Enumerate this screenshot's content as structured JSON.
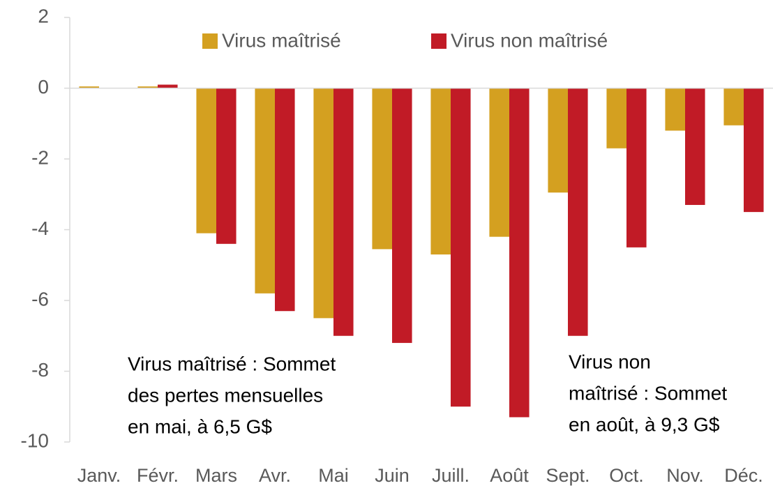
{
  "chart_data": {
    "type": "bar",
    "categories": [
      "Janv.",
      "Févr.",
      "Mars",
      "Avr.",
      "Mai",
      "Juin",
      "Juill.",
      "Août",
      "Sept.",
      "Oct.",
      "Nov.",
      "Déc."
    ],
    "series": [
      {
        "name": "Virus maîtrisé",
        "color": "#d4a020",
        "values": [
          0.05,
          0.05,
          -4.1,
          -5.8,
          -6.5,
          -4.55,
          -4.7,
          -4.2,
          -2.95,
          -1.7,
          -1.2,
          -1.05
        ]
      },
      {
        "name": "Virus non maîtrisé",
        "color": "#c11b26",
        "values": [
          0,
          0.1,
          -4.4,
          -6.3,
          -7.0,
          -7.2,
          -9.0,
          -9.3,
          -7.0,
          -4.5,
          -3.3,
          -3.5
        ]
      }
    ],
    "ylim": [
      -10,
      2
    ],
    "yticks": [
      2,
      0,
      -2,
      -4,
      -6,
      -8,
      -10
    ],
    "legend": "top",
    "annotations": [
      [
        "Virus maîtrisé : Sommet",
        "des pertes mensuelles",
        "en mai, à 6,5 G$"
      ],
      [
        "Virus non",
        "maîtrisé : Sommet",
        "en août, à 9,3 G$"
      ]
    ]
  }
}
